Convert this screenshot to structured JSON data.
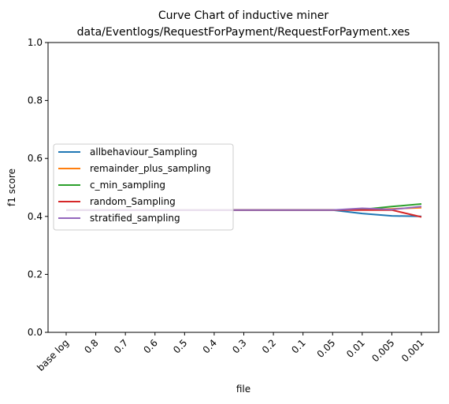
{
  "chart_data": {
    "type": "line",
    "title": "Curve Chart of inductive miner",
    "subtitle": "data/Eventlogs/RequestForPayment/RequestForPayment.xes",
    "xlabel": "file",
    "ylabel": "f1 score",
    "categories": [
      "base log",
      "0.8",
      "0.7",
      "0.6",
      "0.5",
      "0.4",
      "0.3",
      "0.2",
      "0.1",
      "0.05",
      "0.01",
      "0.005",
      "0.001"
    ],
    "ylim": [
      0,
      1.0
    ],
    "yticks": [
      "0.0",
      "0.2",
      "0.4",
      "0.6",
      "0.8",
      "1.0"
    ],
    "grid": false,
    "legend_position": "center-left",
    "series": [
      {
        "name": "allbehaviour_Sampling",
        "color": "#1f77b4",
        "values": [
          0.422,
          0.422,
          0.422,
          0.422,
          0.422,
          0.422,
          0.422,
          0.422,
          0.422,
          0.422,
          0.41,
          0.402,
          0.4
        ]
      },
      {
        "name": "remainder_plus_sampling",
        "color": "#ff7f0e",
        "values": [
          0.422,
          0.422,
          0.422,
          0.422,
          0.422,
          0.422,
          0.422,
          0.422,
          0.422,
          0.422,
          0.424,
          0.426,
          0.43
        ]
      },
      {
        "name": "c_min_sampling",
        "color": "#2ca02c",
        "values": [
          0.422,
          0.422,
          0.422,
          0.422,
          0.422,
          0.422,
          0.422,
          0.422,
          0.422,
          0.422,
          0.424,
          0.434,
          0.443
        ]
      },
      {
        "name": "random_Sampling",
        "color": "#d62728",
        "values": [
          0.422,
          0.422,
          0.422,
          0.422,
          0.422,
          0.422,
          0.422,
          0.422,
          0.422,
          0.422,
          0.422,
          0.422,
          0.398
        ]
      },
      {
        "name": "stratified_sampling",
        "color": "#9467bd",
        "values": [
          0.422,
          0.422,
          0.422,
          0.422,
          0.422,
          0.422,
          0.422,
          0.422,
          0.422,
          0.422,
          0.428,
          0.424,
          0.434
        ]
      }
    ]
  }
}
